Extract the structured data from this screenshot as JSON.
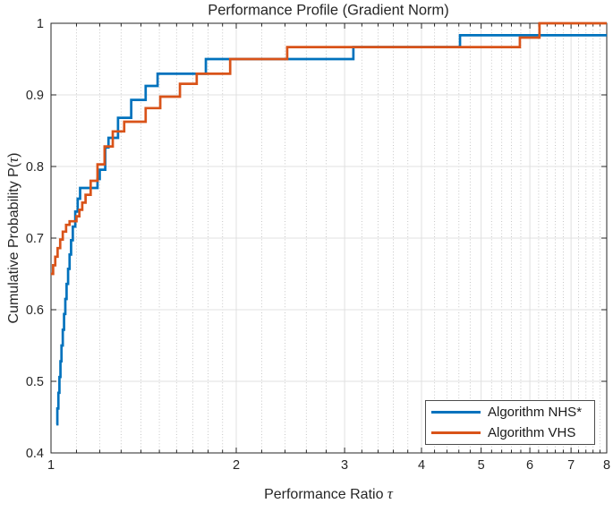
{
  "window": {
    "background": "#ffffff"
  },
  "chart_data": {
    "type": "line",
    "title": "Performance Profile (Gradient Norm)",
    "xlabel": "Performance Ratio τ",
    "ylabel": "Cumulative Probability P(τ)",
    "x_scale": "log",
    "xlim": [
      1,
      8
    ],
    "ylim": [
      0.4,
      1.0
    ],
    "x_ticks": [
      1,
      2,
      3,
      4,
      5,
      6,
      7,
      8
    ],
    "x_tick_labels": [
      "1",
      "2",
      "3",
      "4",
      "5",
      "6",
      "7",
      "8"
    ],
    "x_minor_ticks": [
      1.1,
      1.2,
      1.3,
      1.4,
      1.5,
      1.6,
      1.7,
      1.8,
      1.9,
      2.2,
      2.4,
      2.6,
      2.8,
      3.2,
      3.4,
      3.6,
      3.8,
      4.2,
      4.4,
      4.6,
      4.8,
      5.2,
      5.4,
      5.6,
      5.8,
      6.2,
      6.4,
      6.6,
      6.8,
      7.2,
      7.4,
      7.6,
      7.8
    ],
    "y_ticks": [
      0.4,
      0.5,
      0.6,
      0.7,
      0.8,
      0.9,
      1.0
    ],
    "y_tick_labels": [
      "0.4",
      "0.5",
      "0.6",
      "0.7",
      "0.8",
      "0.9",
      "1"
    ],
    "grid": true,
    "minor_grid": true,
    "axis_color": "#262626",
    "legend": {
      "position": "bottom-right",
      "border_color": "#4d4d4d"
    },
    "series": [
      {
        "name": "Algorithm NHS*",
        "color": "#0072BD",
        "line_width": 2.7,
        "step": true,
        "points": [
          [
            1.02,
            0.44
          ],
          [
            1.024,
            0.462
          ],
          [
            1.028,
            0.484
          ],
          [
            1.032,
            0.506
          ],
          [
            1.036,
            0.528
          ],
          [
            1.04,
            0.55
          ],
          [
            1.045,
            0.572
          ],
          [
            1.05,
            0.594
          ],
          [
            1.055,
            0.615
          ],
          [
            1.06,
            0.636
          ],
          [
            1.066,
            0.657
          ],
          [
            1.072,
            0.677
          ],
          [
            1.078,
            0.697
          ],
          [
            1.085,
            0.716
          ],
          [
            1.095,
            0.737
          ],
          [
            1.105,
            0.755
          ],
          [
            1.115,
            0.77
          ],
          [
            1.19,
            0.7825
          ],
          [
            1.2,
            0.7955
          ],
          [
            1.225,
            0.8265
          ],
          [
            1.24,
            0.84
          ],
          [
            1.285,
            0.868
          ],
          [
            1.35,
            0.893
          ],
          [
            1.425,
            0.9125
          ],
          [
            1.49,
            0.9295
          ],
          [
            1.785,
            0.95
          ],
          [
            3.1,
            0.9667
          ],
          [
            4.62,
            0.9833
          ],
          [
            8,
            0.9833
          ]
        ]
      },
      {
        "name": "Algorithm VHS",
        "color": "#D95319",
        "line_width": 2.7,
        "step": true,
        "points": [
          [
            1.0,
            0.65
          ],
          [
            1.008,
            0.662
          ],
          [
            1.016,
            0.674
          ],
          [
            1.025,
            0.686
          ],
          [
            1.035,
            0.698
          ],
          [
            1.045,
            0.709
          ],
          [
            1.058,
            0.7185
          ],
          [
            1.072,
            0.7235
          ],
          [
            1.1,
            0.7305
          ],
          [
            1.112,
            0.7395
          ],
          [
            1.124,
            0.7495
          ],
          [
            1.138,
            0.7605
          ],
          [
            1.16,
            0.78
          ],
          [
            1.19,
            0.803
          ],
          [
            1.222,
            0.828
          ],
          [
            1.26,
            0.849
          ],
          [
            1.315,
            0.8625
          ],
          [
            1.425,
            0.8815
          ],
          [
            1.505,
            0.8975
          ],
          [
            1.62,
            0.9155
          ],
          [
            1.725,
            0.9295
          ],
          [
            1.955,
            0.95
          ],
          [
            2.42,
            0.9667
          ],
          [
            5.78,
            0.98
          ],
          [
            6.22,
            1.0
          ],
          [
            8,
            1.0
          ]
        ]
      }
    ]
  }
}
